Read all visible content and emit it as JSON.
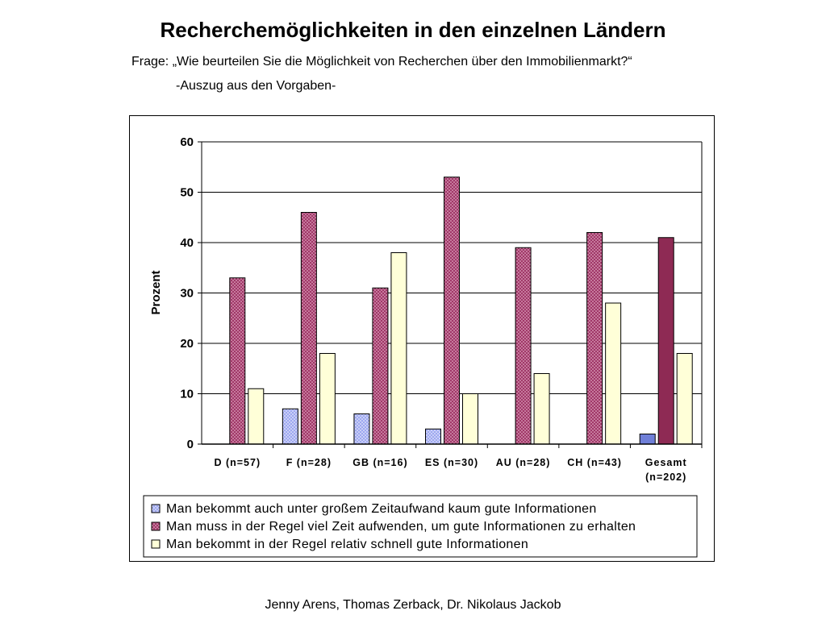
{
  "header": {
    "title": "Recherchemöglichkeiten in den einzelnen Ländern",
    "question": "Frage: „Wie beurteilen Sie die Möglichkeit von Recherchen über den Immobilienmarkt?“",
    "note": "-Auszug aus den Vorgaben-"
  },
  "footer": {
    "credit": "Jenny Arens, Thomas Zerback, Dr. Nikolaus Jackob"
  },
  "colors": {
    "series_1": "#9ea8f0",
    "series_2": "#a03868",
    "series_3": "#ffffd8",
    "series_2_gesamt": "#8e2a54",
    "series_1_gesamt": "#6f7fd8"
  },
  "chart_data": {
    "type": "bar",
    "ylabel": "Prozent",
    "ylim": [
      0,
      60
    ],
    "yticks": [
      0,
      10,
      20,
      30,
      40,
      50,
      60
    ],
    "grid": true,
    "legend_position": "bottom",
    "categories": [
      [
        "D (n=57)"
      ],
      [
        "F (n=28)"
      ],
      [
        "GB (n=16)"
      ],
      [
        "ES (n=30)"
      ],
      [
        "AU (n=28)"
      ],
      [
        "CH (n=43)"
      ],
      [
        "Gesamt",
        "(n=202)"
      ]
    ],
    "series": [
      {
        "name": "Man bekommt auch unter großem Zeitaufwand kaum gute Informationen",
        "values": [
          0,
          7,
          6,
          3,
          0,
          0,
          2
        ]
      },
      {
        "name": "Man muss in der Regel viel Zeit aufwenden, um gute Informationen zu erhalten",
        "values": [
          33,
          46,
          31,
          53,
          39,
          42,
          41
        ]
      },
      {
        "name": "Man bekommt in der Regel relativ schnell gute Informationen",
        "values": [
          11,
          18,
          38,
          10,
          14,
          28,
          18
        ]
      }
    ]
  }
}
